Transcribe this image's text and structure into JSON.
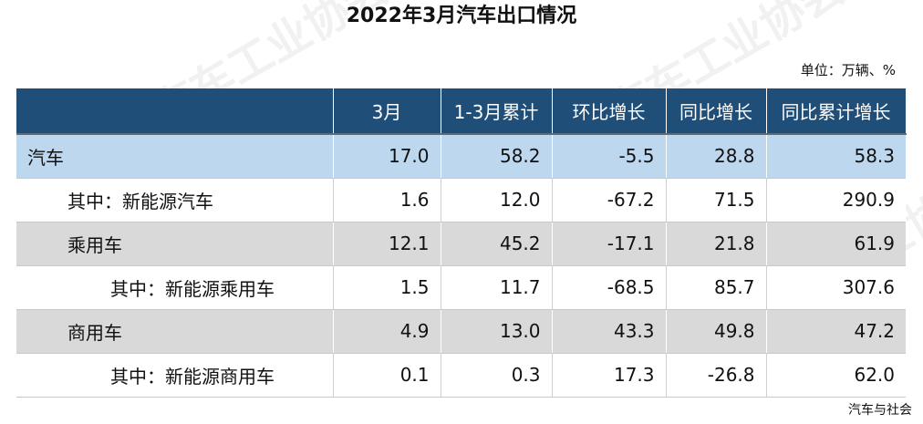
{
  "title": "2022年3月汽车出口情况",
  "unit": "单位：万辆、%",
  "columns": [
    "",
    "3月",
    "1-3月累计",
    "环比增长",
    "同比增长",
    "同比累计增长"
  ],
  "rows": [
    {
      "label": "汽车",
      "values": [
        "17.0",
        "58.2",
        "-5.5",
        "28.8",
        "58.3"
      ]
    },
    {
      "label": "其中：新能源汽车",
      "values": [
        "1.6",
        "12.0",
        "-67.2",
        "71.5",
        "290.9"
      ]
    },
    {
      "label": "乘用车",
      "values": [
        "12.1",
        "45.2",
        "-17.1",
        "21.8",
        "61.9"
      ]
    },
    {
      "label": "其中：新能源乘用车",
      "values": [
        "1.5",
        "11.7",
        "-68.5",
        "85.7",
        "307.6"
      ]
    },
    {
      "label": "商用车",
      "values": [
        "4.9",
        "13.0",
        "43.3",
        "49.8",
        "47.2"
      ]
    },
    {
      "label": "其中：新能源商用车",
      "values": [
        "0.1",
        "0.3",
        "17.3",
        "-26.8",
        "62.0"
      ]
    }
  ],
  "source": "汽车与社会",
  "watermark": "中国汽车工业协会"
}
